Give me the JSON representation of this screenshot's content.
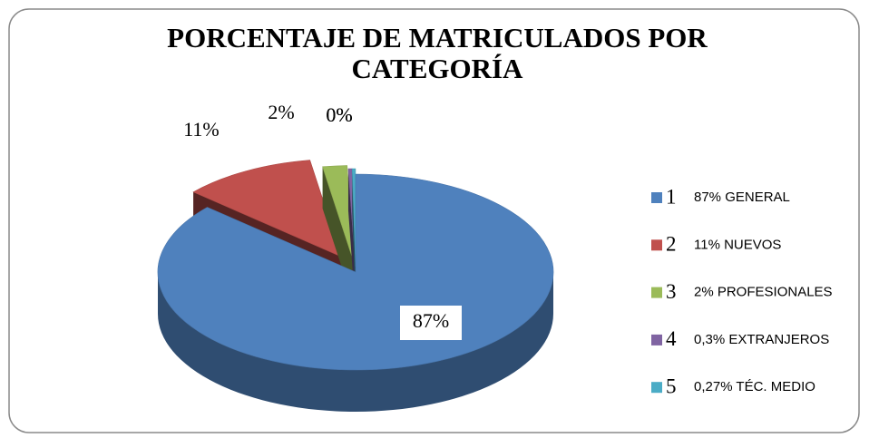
{
  "chart_data": {
    "type": "pie3d",
    "title": [
      "PORCENTAJE DE MATRICULADOS POR",
      "CATEGORÍA"
    ],
    "categories": [
      "1",
      "2",
      "3",
      "4",
      "5"
    ],
    "category_descriptions": [
      "87%  GENERAL",
      "11% NUEVOS",
      "2% PROFESIONALES",
      "0,3% EXTRANJEROS",
      "0,27% TÉC. MEDIO"
    ],
    "values": [
      87,
      11,
      2,
      0.3,
      0.27
    ],
    "value_labels": [
      "87%",
      "11%",
      "2%",
      "0%",
      "0%"
    ],
    "colors": [
      "#4f81bd",
      "#c0504d",
      "#9bbb59",
      "#8064a2",
      "#4bacc6"
    ],
    "legend": "right"
  }
}
